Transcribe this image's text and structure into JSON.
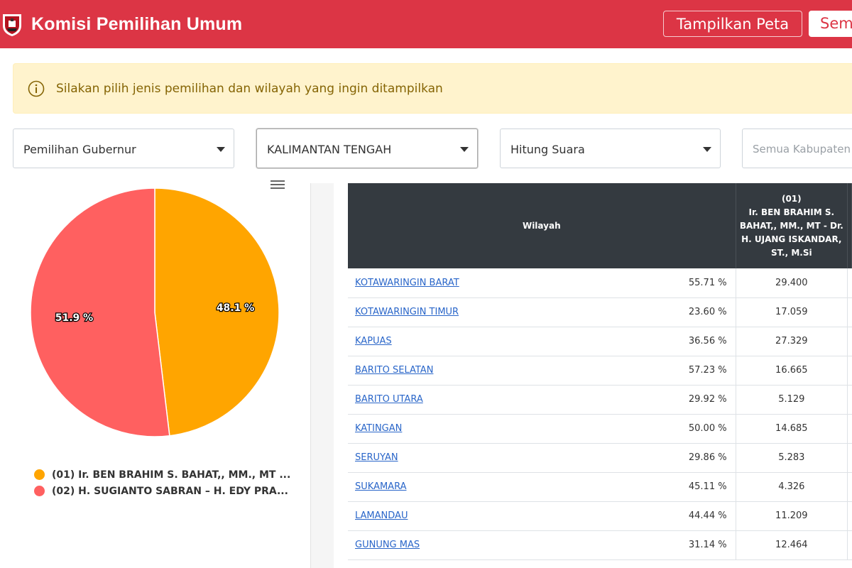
{
  "header": {
    "title": "Komisi Pemilihan Umum",
    "btn_peta": "Tampilkan Peta",
    "btn_semua": "Sem"
  },
  "alert": {
    "text": "Silakan pilih jenis pemilihan dan wilayah yang ingin ditampilkan"
  },
  "filters": {
    "election": "Pemilihan Gubernur",
    "province": "KALIMANTAN TENGAH",
    "mode": "Hitung Suara",
    "regency_placeholder": "Semua Kabupaten"
  },
  "chart_data": {
    "type": "pie",
    "series": [
      {
        "name": "(01) Ir. BEN BRAHIM S. BAHAT,, MM., MT ...",
        "value": 48.1,
        "label": "48.1 %",
        "color": "#ffa500"
      },
      {
        "name": "(02) H. SUGIANTO SABRAN – H. EDY PRA...",
        "value": 51.9,
        "label": "51.9 %",
        "color": "#ff6060"
      }
    ]
  },
  "table": {
    "header_wilayah": "Wilayah",
    "header_cand_no": "(01)",
    "header_cand_name": "Ir. BEN BRAHIM S. BAHAT,, MM., MT - Dr. H. UJANG ISKANDAR, ST., M.Si",
    "rows": [
      {
        "name": "KOTAWARINGIN BARAT",
        "pct": "55.71 %",
        "votes": "29.400"
      },
      {
        "name": "KOTAWARINGIN TIMUR",
        "pct": "23.60 %",
        "votes": "17.059"
      },
      {
        "name": "KAPUAS",
        "pct": "36.56 %",
        "votes": "27.329"
      },
      {
        "name": "BARITO SELATAN",
        "pct": "57.23 %",
        "votes": "16.665"
      },
      {
        "name": "BARITO UTARA",
        "pct": "29.92 %",
        "votes": "5.129"
      },
      {
        "name": "KATINGAN",
        "pct": "50.00 %",
        "votes": "14.685"
      },
      {
        "name": "SERUYAN",
        "pct": "29.86 %",
        "votes": "5.283"
      },
      {
        "name": "SUKAMARA",
        "pct": "45.11 %",
        "votes": "4.326"
      },
      {
        "name": "LAMANDAU",
        "pct": "44.44 %",
        "votes": "11.209"
      },
      {
        "name": "GUNUNG MAS",
        "pct": "31.14 %",
        "votes": "12.464"
      }
    ]
  }
}
